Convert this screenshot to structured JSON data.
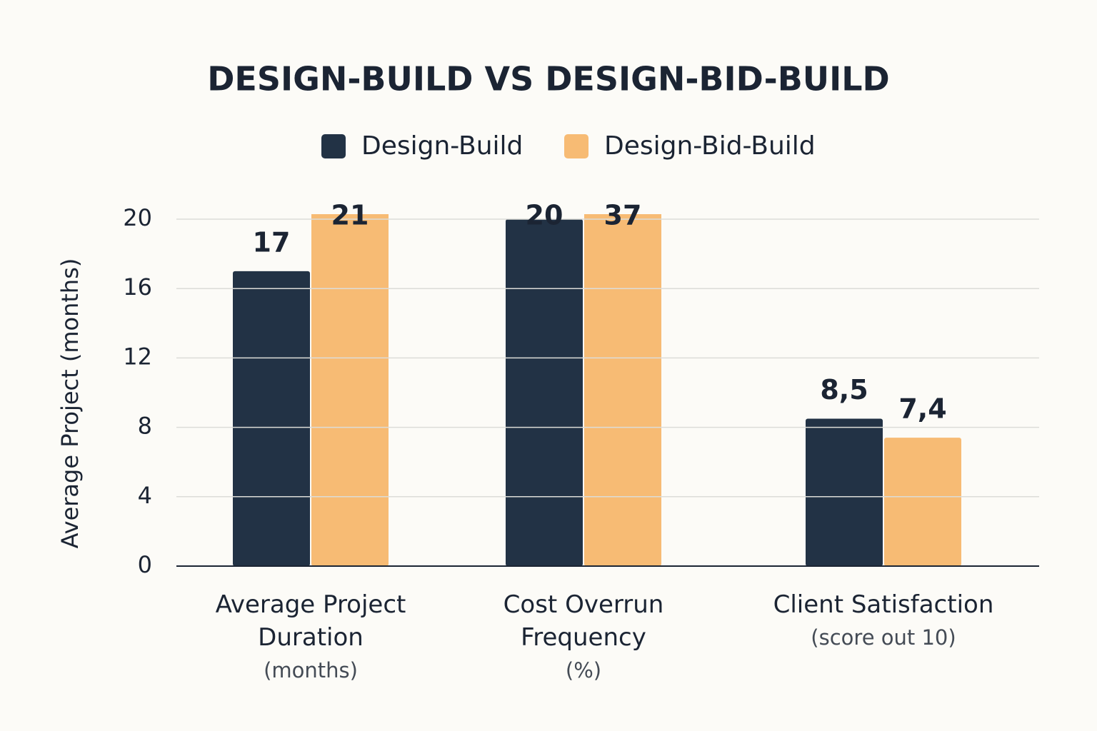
{
  "chart_data": {
    "type": "bar",
    "title": "DESIGN-BUILD VS DESIGN-BID-BUILD",
    "y_label": "Average Project (months)",
    "categories": [
      "Average Project Duration",
      "Cost Overrun Frequency",
      "Client Satisfaction"
    ],
    "category_notes": [
      "(months)",
      "(%)",
      "(score out 10)"
    ],
    "series": [
      {
        "name": "Design-Build",
        "color": "#223245",
        "values": [
          17,
          20,
          8.5
        ],
        "value_labels": [
          "17",
          "20",
          "8,5"
        ]
      },
      {
        "name": "Design-Bid-Build",
        "color": "#f7bb74",
        "values": [
          21,
          37,
          7.4
        ],
        "value_labels": [
          "21",
          "37",
          "7,4"
        ]
      }
    ],
    "ylim": [
      0,
      20
    ],
    "yticks": [
      0,
      4,
      8,
      12,
      16,
      20
    ],
    "grid": true
  }
}
